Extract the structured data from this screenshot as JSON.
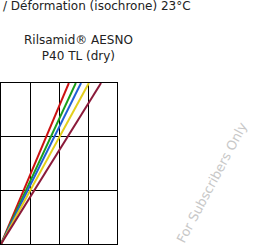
{
  "chart_data": {
    "type": "line",
    "title": "/ Déformation (isochrone) 23°C",
    "subtitle": "Rilsamid® AESNO P40 TL (dry)",
    "watermark": "For Subscribers Only",
    "grid": true,
    "tick_labels": false,
    "xlim": [
      0,
      4
    ],
    "ylim": [
      0,
      3
    ],
    "xticks": [
      0,
      1,
      2,
      3,
      4
    ],
    "yticks": [
      0,
      1,
      2,
      3
    ],
    "series": [
      {
        "color": "#cc1111",
        "x": [
          0,
          2.34
        ],
        "values": [
          0,
          3
        ]
      },
      {
        "color": "#1a9e1a",
        "x": [
          0,
          2.58
        ],
        "values": [
          0,
          3
        ]
      },
      {
        "color": "#1f5fd6",
        "x": [
          0,
          2.76
        ],
        "values": [
          0,
          3
        ]
      },
      {
        "color": "#e3cf1c",
        "x": [
          0,
          3.03
        ],
        "values": [
          0,
          3
        ]
      },
      {
        "color": "#8b1a3a",
        "x": [
          0,
          3.45
        ],
        "values": [
          0,
          3
        ]
      }
    ]
  }
}
